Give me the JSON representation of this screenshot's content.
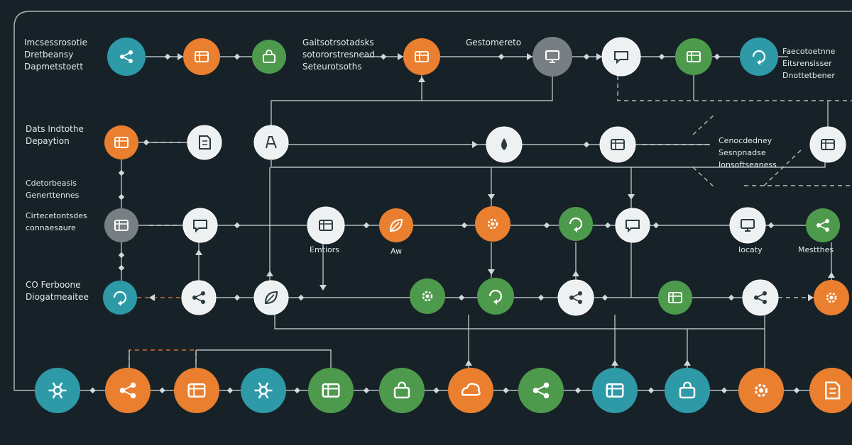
{
  "colors": {
    "background": "#172228",
    "line": "#cfd8dc",
    "teal": "#2e9aa8",
    "orange": "#ea7f2f",
    "green": "#4e9a4d",
    "gray": "#787f83",
    "white": "#eef1f2",
    "icon_on_color": "#ffffff",
    "icon_on_white": "#2b3a40"
  },
  "labels": {
    "top_left": [
      "Imcsessrosotie",
      "Dretbeansy",
      "Dapmetstoett"
    ],
    "top_center": [
      "Gaitsotrsotadsks",
      "sotororstresnead",
      "Seteurotsoths"
    ],
    "top_center2": [
      "Gestomereto"
    ],
    "top_right": [
      "Faecotoetnne",
      "Eitsrensisser",
      "Dnottetbener"
    ],
    "mid_left1": [
      "Dats Indtothe",
      "Depaytion"
    ],
    "mid_left2": [
      "Cdetorbeasis",
      "Generttennes"
    ],
    "mid_left3": [
      "Cirtecetontsdes",
      "connaesaure"
    ],
    "mid_right": [
      "Cenocdedney",
      "Sesnpnadse",
      "Ionsoftseaness"
    ],
    "bottom_left": [
      "CO Ferboone",
      "Diogatmeaitee"
    ],
    "node_emtiors": "Emtiors",
    "node_aw": "Aw",
    "node_iocaty": "Iocaty",
    "node_mesthes": "Mestthes"
  },
  "nodes": [
    {
      "name": "workflow-icon",
      "color": "teal"
    },
    {
      "name": "building-icon",
      "color": "orange"
    },
    {
      "name": "bag-icon",
      "color": "green"
    },
    {
      "name": "grid-icon",
      "color": "orange"
    },
    {
      "name": "monitor-icon",
      "color": "gray"
    },
    {
      "name": "puzzle-icon",
      "color": "white"
    },
    {
      "name": "calendar-icon",
      "color": "green"
    },
    {
      "name": "refresh-icon",
      "color": "teal"
    },
    {
      "name": "panel-icon",
      "color": "orange"
    },
    {
      "name": "document-icon",
      "color": "white"
    },
    {
      "name": "pen-icon",
      "color": "white"
    },
    {
      "name": "drop-icon",
      "color": "white"
    },
    {
      "name": "database-icon",
      "color": "white"
    },
    {
      "name": "table-icon",
      "color": "white"
    },
    {
      "name": "server-icon",
      "color": "gray"
    },
    {
      "name": "chat-icon",
      "color": "white"
    },
    {
      "name": "window-icon",
      "color": "white"
    },
    {
      "name": "leaf-icon",
      "color": "orange"
    },
    {
      "name": "gears-icon",
      "color": "orange"
    },
    {
      "name": "recycle-icon",
      "color": "green"
    },
    {
      "name": "headset-icon",
      "color": "white"
    },
    {
      "name": "screen-icon",
      "color": "white"
    },
    {
      "name": "network-icon",
      "color": "green"
    },
    {
      "name": "cycle-icon",
      "color": "teal"
    },
    {
      "name": "share-icon",
      "color": "white"
    },
    {
      "name": "flask-icon",
      "color": "white"
    },
    {
      "name": "brain-icon",
      "color": "green"
    },
    {
      "name": "globe-icon",
      "color": "green"
    },
    {
      "name": "tools-icon",
      "color": "white"
    },
    {
      "name": "layers-icon",
      "color": "green"
    },
    {
      "name": "team-icon",
      "color": "white"
    },
    {
      "name": "alert-icon",
      "color": "orange"
    },
    {
      "name": "hub-icon",
      "color": "teal"
    },
    {
      "name": "link-icon",
      "color": "orange"
    },
    {
      "name": "card-icon",
      "color": "orange"
    },
    {
      "name": "chip-icon",
      "color": "teal"
    },
    {
      "name": "form-icon",
      "color": "green"
    },
    {
      "name": "truck-icon",
      "color": "green"
    },
    {
      "name": "cloud-icon",
      "color": "orange"
    },
    {
      "name": "sync-icon",
      "color": "green"
    },
    {
      "name": "storage-icon",
      "color": "teal"
    },
    {
      "name": "basket-icon",
      "color": "teal"
    },
    {
      "name": "target-icon",
      "color": "orange"
    },
    {
      "name": "docs-icon",
      "color": "orange"
    }
  ]
}
